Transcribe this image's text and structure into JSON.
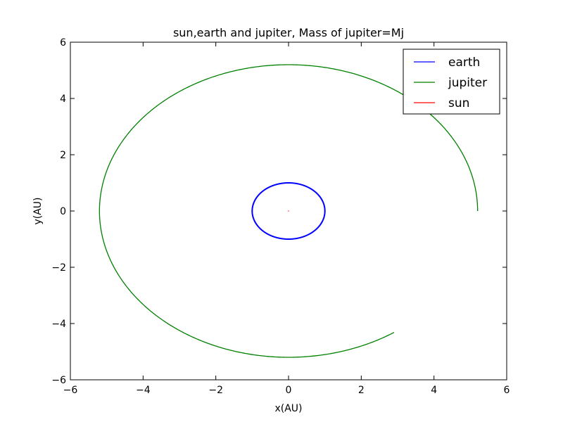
{
  "chart_data": {
    "type": "line",
    "title": "sun,earth and jupiter, Mass of jupiter=Mj",
    "xlabel": "x(AU)",
    "ylabel": "y(AU)",
    "xlim": [
      -6,
      6
    ],
    "ylim": [
      -6,
      6
    ],
    "xticks": [
      -6,
      -4,
      -2,
      0,
      2,
      4,
      6
    ],
    "yticks": [
      -6,
      -4,
      -2,
      0,
      2,
      4,
      6
    ],
    "grid": false,
    "legend": "top-right",
    "series": [
      {
        "name": "earth",
        "color": "#0000ff",
        "orbit": {
          "radius": 1.0,
          "start_deg": 0,
          "end_deg": 360
        }
      },
      {
        "name": "jupiter",
        "color": "#008000",
        "orbit": {
          "radius": 5.2,
          "start_deg": 0,
          "end_deg": 303.9,
          "end_point": [
            2.9,
            -4.32
          ]
        }
      },
      {
        "name": "sun",
        "color": "#ff0000",
        "point": [
          0,
          0
        ]
      }
    ]
  }
}
